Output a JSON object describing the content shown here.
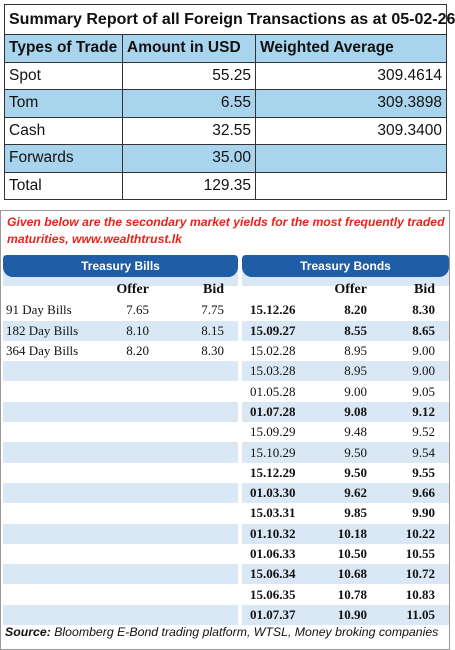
{
  "summary": {
    "title": "Summary Report of all Foreign Transactions as at 05-02-26",
    "headers": [
      "Types of Trade",
      "Amount in USD",
      "Weighted Average"
    ],
    "rows": [
      {
        "type": "Spot",
        "amount": "55.25",
        "wavg": "309.4614"
      },
      {
        "type": "Tom",
        "amount": "6.55",
        "wavg": "309.3898"
      },
      {
        "type": "Cash",
        "amount": "32.55",
        "wavg": "309.3400"
      },
      {
        "type": "Forwards",
        "amount": "35.00",
        "wavg": ""
      },
      {
        "type": "Total",
        "amount": "129.35",
        "wavg": ""
      }
    ],
    "accent_color": "#a9d4ee"
  },
  "yields": {
    "caption": "Given below are the secondary market yields for the most frequently traded maturities, www.wealthtrust.lk",
    "caption_color": "#e8231c",
    "bills_title": "Treasury Bills",
    "bonds_title": "Treasury Bonds",
    "header_color": "#1f5da6",
    "offer_label": "Offer",
    "bid_label": "Bid",
    "bills": [
      {
        "name": "91 Day Bills",
        "offer": "7.65",
        "bid": "7.75"
      },
      {
        "name": "182 Day Bills",
        "offer": "8.10",
        "bid": "8.15"
      },
      {
        "name": "364 Day Bills",
        "offer": "8.20",
        "bid": "8.30"
      }
    ],
    "bonds": [
      {
        "maturity": "15.12.26",
        "offer": "8.20",
        "bid": "8.30",
        "bold": true
      },
      {
        "maturity": "15.09.27",
        "offer": "8.55",
        "bid": "8.65",
        "bold": true
      },
      {
        "maturity": "15.02.28",
        "offer": "8.95",
        "bid": "9.00",
        "bold": false
      },
      {
        "maturity": "15.03.28",
        "offer": "8.95",
        "bid": "9.00",
        "bold": false
      },
      {
        "maturity": "01.05.28",
        "offer": "9.00",
        "bid": "9.05",
        "bold": false
      },
      {
        "maturity": "01.07.28",
        "offer": "9.08",
        "bid": "9.12",
        "bold": true
      },
      {
        "maturity": "15.09.29",
        "offer": "9.48",
        "bid": "9.52",
        "bold": false
      },
      {
        "maturity": "15.10.29",
        "offer": "9.50",
        "bid": "9.54",
        "bold": false
      },
      {
        "maturity": "15.12.29",
        "offer": "9.50",
        "bid": "9.55",
        "bold": true
      },
      {
        "maturity": "01.03.30",
        "offer": "9.62",
        "bid": "9.66",
        "bold": true
      },
      {
        "maturity": "15.03.31",
        "offer": "9.85",
        "bid": "9.90",
        "bold": true
      },
      {
        "maturity": "01.10.32",
        "offer": "10.18",
        "bid": "10.22",
        "bold": true
      },
      {
        "maturity": "01.06.33",
        "offer": "10.50",
        "bid": "10.55",
        "bold": true
      },
      {
        "maturity": "15.06.34",
        "offer": "10.68",
        "bid": "10.72",
        "bold": true
      },
      {
        "maturity": "15.06.35",
        "offer": "10.78",
        "bid": "10.83",
        "bold": true
      },
      {
        "maturity": "01.07.37",
        "offer": "10.90",
        "bid": "11.05",
        "bold": true
      }
    ],
    "source_label": "Source:",
    "source_text": "Bloomberg E-Bond trading platform, WTSL, Money broking companies"
  }
}
